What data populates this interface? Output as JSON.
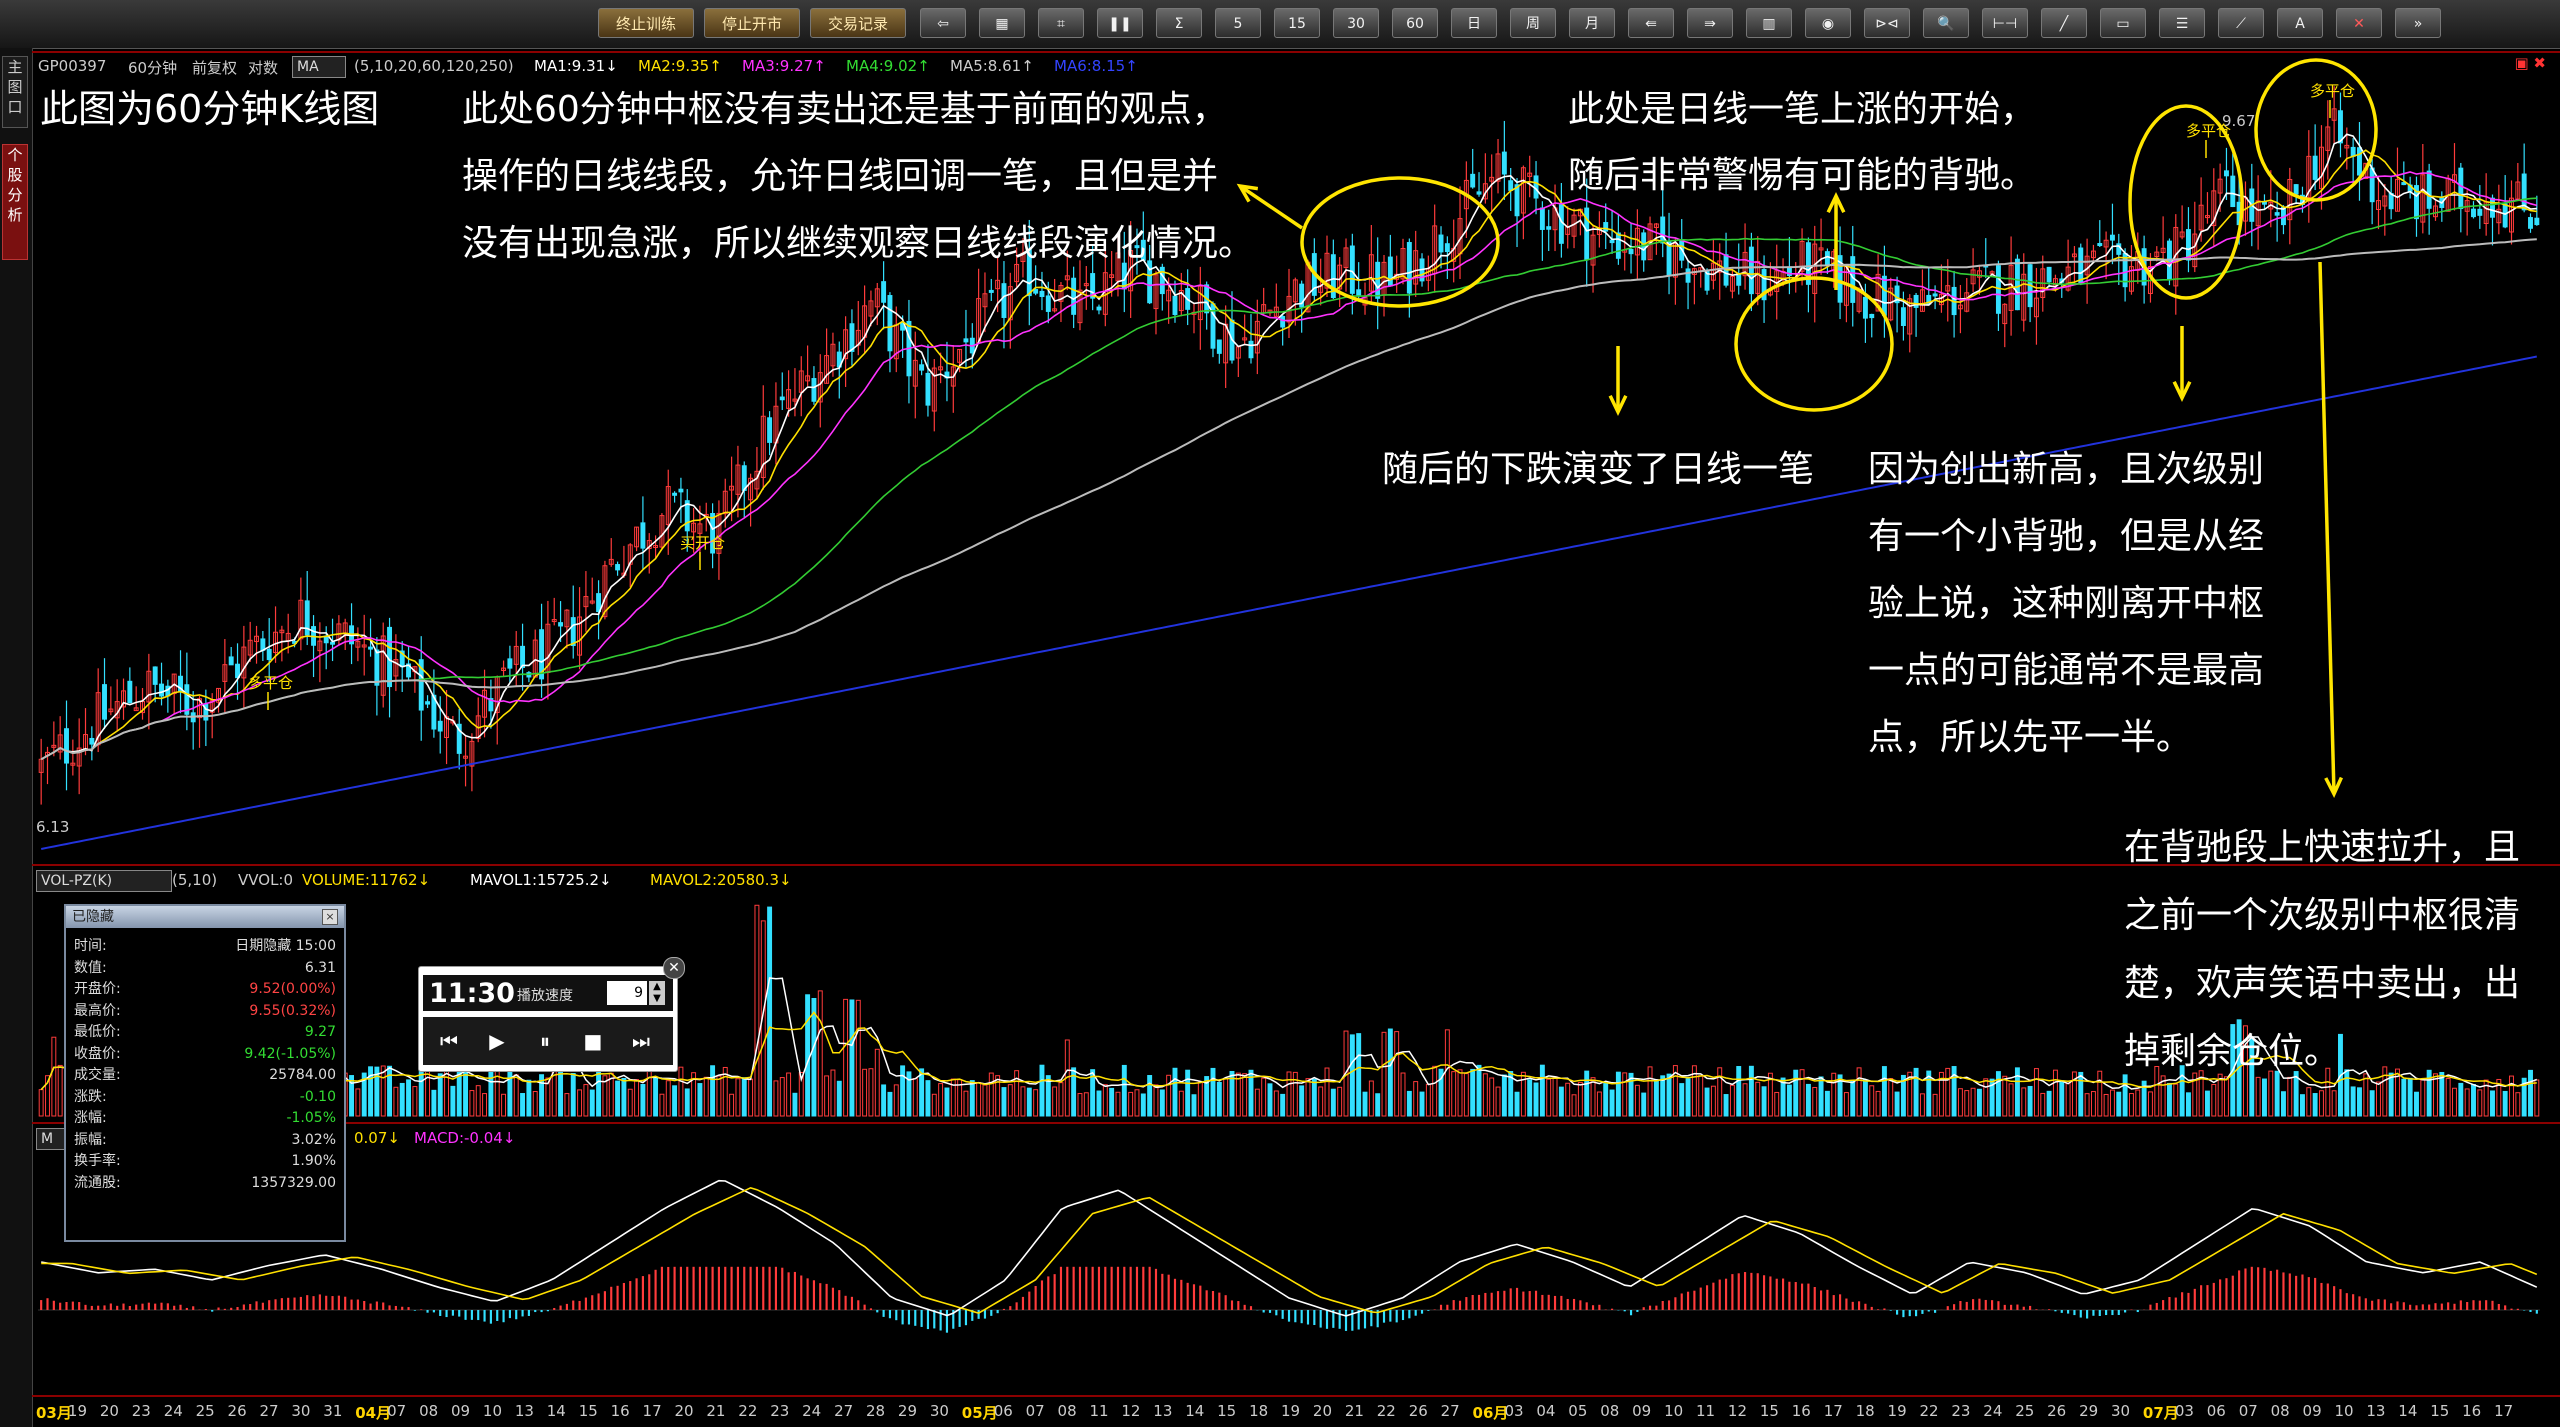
{
  "toolbar": {
    "text_buttons": [
      "终止训练",
      "停止开市",
      "交易记录"
    ],
    "icon_buttons": [
      {
        "name": "back-arrow-icon",
        "glyph": "⇦"
      },
      {
        "name": "grid-icon",
        "glyph": "▦"
      },
      {
        "name": "tick-icon",
        "glyph": "⌗"
      },
      {
        "name": "pair-icon",
        "glyph": "❚❚"
      },
      {
        "name": "sigma-icon",
        "glyph": "Σ"
      },
      {
        "name": "period-5-icon",
        "glyph": "5"
      },
      {
        "name": "period-15-icon",
        "glyph": "15"
      },
      {
        "name": "period-30-icon",
        "glyph": "30"
      },
      {
        "name": "period-60-icon",
        "glyph": "60"
      },
      {
        "name": "day-period-icon",
        "glyph": "日"
      },
      {
        "name": "week-period-icon",
        "glyph": "周"
      },
      {
        "name": "month-period-icon",
        "glyph": "月"
      },
      {
        "name": "left-shift-icon",
        "glyph": "⇚"
      },
      {
        "name": "right-shift-icon",
        "glyph": "⇛"
      },
      {
        "name": "bar-style-icon",
        "glyph": "▥"
      },
      {
        "name": "eye-icon",
        "glyph": "◉"
      },
      {
        "name": "fit-icon",
        "glyph": "⊳⊲"
      },
      {
        "name": "zoom-icon",
        "glyph": "🔍"
      },
      {
        "name": "range-icon",
        "glyph": "⊢⊣"
      },
      {
        "name": "line-tool-icon",
        "glyph": "╱"
      },
      {
        "name": "rect-tool-icon",
        "glyph": "▭"
      },
      {
        "name": "list-icon",
        "glyph": "☰"
      },
      {
        "name": "fan-tool-icon",
        "glyph": "⟋"
      },
      {
        "name": "text-tool-icon",
        "glyph": "A"
      },
      {
        "name": "delete-icon",
        "glyph": "✕"
      },
      {
        "name": "more-icon",
        "glyph": "»"
      }
    ]
  },
  "sidebar": {
    "tabs": [
      "主图口",
      "个股分析"
    ]
  },
  "main_info": {
    "code": "GP00397",
    "period": "60分钟",
    "adjust": "前复权",
    "axis": "对数",
    "indicator": "MA",
    "params": "(5,10,20,60,120,250)",
    "ma": [
      {
        "label": "MA1:9.31↓",
        "color": "#ffffff"
      },
      {
        "label": "MA2:9.35↑",
        "color": "#ffe000"
      },
      {
        "label": "MA3:9.27↑",
        "color": "#ff33ff"
      },
      {
        "label": "MA4:9.02↑",
        "color": "#33dd33"
      },
      {
        "label": "MA5:8.61↑",
        "color": "#cccccc"
      },
      {
        "label": "MA6:8.15↑",
        "color": "#3344ff"
      }
    ],
    "low_label": "6.13",
    "high_label": "9.67"
  },
  "annotations": {
    "title": "此图为60分钟K线图",
    "note1": [
      "此处60分钟中枢没有卖出还是基于前面的观点，",
      "操作的日线线段，允许日线回调一笔，且但是并",
      "没有出现急涨，所以继续观察日线线段演化情况。"
    ],
    "note2": [
      "此处是日线一笔上涨的开始，",
      "随后非常警惕有可能的背驰。"
    ],
    "note3": "随后的下跌演变了日线一笔",
    "note4": [
      "因为创出新高，且次级别",
      "有一个小背驰，但是从经",
      "验上说，这种刚离开中枢",
      "一点的可能通常不是最高",
      "点，所以先平一半。"
    ],
    "note5": [
      "在背驰段上快速拉升，且",
      "之前一个次级别中枢很清",
      "楚，欢声笑语中卖出，出",
      "掉剩余仓位。"
    ],
    "signals": [
      "多平仓",
      "买开仓",
      "多平仓",
      "多平仓"
    ]
  },
  "vol_info": {
    "indicator": "VOL-PZ(K)",
    "params": "(5,10)",
    "items": [
      {
        "label": "VVOL:0",
        "color": "#cccccc"
      },
      {
        "label": "VOLUME:11762↓",
        "color": "#ffe000"
      },
      {
        "label": "MAVOL1:15725.2↓",
        "color": "#ffffff"
      },
      {
        "label": "MAVOL2:20580.3↓",
        "color": "#ffe000"
      }
    ]
  },
  "macd_info": {
    "prefix": "M",
    "items": [
      {
        "label": "0.07↓",
        "color": "#ffe000"
      },
      {
        "label": "MACD:-0.04↓",
        "color": "#ff33ff"
      }
    ]
  },
  "data_window": {
    "title": "已隐藏",
    "rows": [
      {
        "k": "时间:",
        "v": "日期隐藏 15:00",
        "c": "#dddddd"
      },
      {
        "k": "数值:",
        "v": "6.31",
        "c": "#dddddd"
      },
      {
        "k": "开盘价:",
        "v": "9.52(0.00%)",
        "c": "#ff4444"
      },
      {
        "k": "最高价:",
        "v": "9.55(0.32%)",
        "c": "#ff4444"
      },
      {
        "k": "最低价:",
        "v": "9.27",
        "c": "#33dd33"
      },
      {
        "k": "收盘价:",
        "v": "9.42(-1.05%)",
        "c": "#33dd33"
      },
      {
        "k": "成交量:",
        "v": "25784.00",
        "c": "#dddddd"
      },
      {
        "k": "涨跌:",
        "v": "-0.10",
        "c": "#33dd33"
      },
      {
        "k": "涨幅:",
        "v": "-1.05%",
        "c": "#33dd33"
      },
      {
        "k": "振幅:",
        "v": "3.02%",
        "c": "#dddddd"
      },
      {
        "k": "换手率:",
        "v": "1.90%",
        "c": "#dddddd"
      },
      {
        "k": "流通股:",
        "v": "1357329.00",
        "c": "#dddddd"
      }
    ]
  },
  "player": {
    "time": "11:30",
    "speed_label": "播放速度",
    "speed_value": "9",
    "controls": [
      {
        "name": "skip-back-icon",
        "glyph": "⏮"
      },
      {
        "name": "play-icon",
        "glyph": "▶"
      },
      {
        "name": "pause-icon",
        "glyph": "⏸"
      },
      {
        "name": "stop-icon",
        "glyph": "■"
      },
      {
        "name": "skip-forward-icon",
        "glyph": "⏭"
      }
    ]
  },
  "date_axis": [
    {
      "t": "03月",
      "m": true
    },
    {
      "t": "19"
    },
    {
      "t": "20"
    },
    {
      "t": "23"
    },
    {
      "t": "24"
    },
    {
      "t": "25"
    },
    {
      "t": "26"
    },
    {
      "t": "27"
    },
    {
      "t": "30"
    },
    {
      "t": "31"
    },
    {
      "t": "04月",
      "m": true
    },
    {
      "t": "07"
    },
    {
      "t": "08"
    },
    {
      "t": "09"
    },
    {
      "t": "10"
    },
    {
      "t": "13"
    },
    {
      "t": "14"
    },
    {
      "t": "15"
    },
    {
      "t": "16"
    },
    {
      "t": "17"
    },
    {
      "t": "20"
    },
    {
      "t": "21"
    },
    {
      "t": "22"
    },
    {
      "t": "23"
    },
    {
      "t": "24"
    },
    {
      "t": "27"
    },
    {
      "t": "28"
    },
    {
      "t": "29"
    },
    {
      "t": "30"
    },
    {
      "t": "05月",
      "m": true
    },
    {
      "t": "06"
    },
    {
      "t": "07"
    },
    {
      "t": "08"
    },
    {
      "t": "11"
    },
    {
      "t": "12"
    },
    {
      "t": "13"
    },
    {
      "t": "14"
    },
    {
      "t": "15"
    },
    {
      "t": "18"
    },
    {
      "t": "19"
    },
    {
      "t": "20"
    },
    {
      "t": "21"
    },
    {
      "t": "22"
    },
    {
      "t": "26"
    },
    {
      "t": "27"
    },
    {
      "t": "06月",
      "m": true
    },
    {
      "t": "03"
    },
    {
      "t": "04"
    },
    {
      "t": "05"
    },
    {
      "t": "08"
    },
    {
      "t": "09"
    },
    {
      "t": "10"
    },
    {
      "t": "11"
    },
    {
      "t": "12"
    },
    {
      "t": "15"
    },
    {
      "t": "16"
    },
    {
      "t": "17"
    },
    {
      "t": "18"
    },
    {
      "t": "19"
    },
    {
      "t": "22"
    },
    {
      "t": "23"
    },
    {
      "t": "24"
    },
    {
      "t": "25"
    },
    {
      "t": "26"
    },
    {
      "t": "29"
    },
    {
      "t": "30"
    },
    {
      "t": "07月",
      "m": true
    },
    {
      "t": "03"
    },
    {
      "t": "06"
    },
    {
      "t": "07"
    },
    {
      "t": "08"
    },
    {
      "t": "09"
    },
    {
      "t": "10"
    },
    {
      "t": "13"
    },
    {
      "t": "14"
    },
    {
      "t": "15"
    },
    {
      "t": "16"
    },
    {
      "t": "17"
    }
  ],
  "chart_data": {
    "type": "candlestick",
    "price_path": [
      6.3,
      6.55,
      6.75,
      6.65,
      6.95,
      7.15,
      7.0,
      6.8,
      6.45,
      6.8,
      7.0,
      7.45,
      7.75,
      7.6,
      8.2,
      8.55,
      8.9,
      8.4,
      8.75,
      9.05,
      8.85,
      9.1,
      8.95,
      8.65,
      8.95,
      9.05,
      9.0,
      9.3,
      9.6,
      9.4,
      9.25,
      9.2,
      9.1,
      9.0,
      9.1,
      8.95,
      8.85,
      8.95,
      9.0,
      9.05,
      9.1,
      9.15,
      9.5,
      9.3,
      9.85,
      9.5,
      9.45,
      9.5,
      9.4
    ],
    "volume_peaks": [
      {
        "x": 0.29,
        "v": 1.0
      },
      {
        "x": 0.31,
        "v": 0.6
      },
      {
        "x": 0.325,
        "v": 0.58
      },
      {
        "x": 0.525,
        "v": 0.42
      },
      {
        "x": 0.54,
        "v": 0.42
      },
      {
        "x": 0.88,
        "v": 0.46
      }
    ],
    "macd_path": [
      0.05,
      0.02,
      0.03,
      0.0,
      0.04,
      0.07,
      0.03,
      -0.02,
      -0.06,
      0.0,
      0.1,
      0.2,
      0.28,
      0.2,
      0.1,
      -0.05,
      -0.1,
      0.0,
      0.2,
      0.25,
      0.15,
      0.05,
      -0.05,
      -0.1,
      -0.05,
      0.05,
      0.1,
      0.05,
      -0.02,
      0.08,
      0.18,
      0.13,
      0.04,
      -0.04,
      0.05,
      0.02,
      -0.04,
      0.0,
      0.1,
      0.2,
      0.15,
      0.05,
      0.02,
      0.05,
      -0.02
    ]
  }
}
